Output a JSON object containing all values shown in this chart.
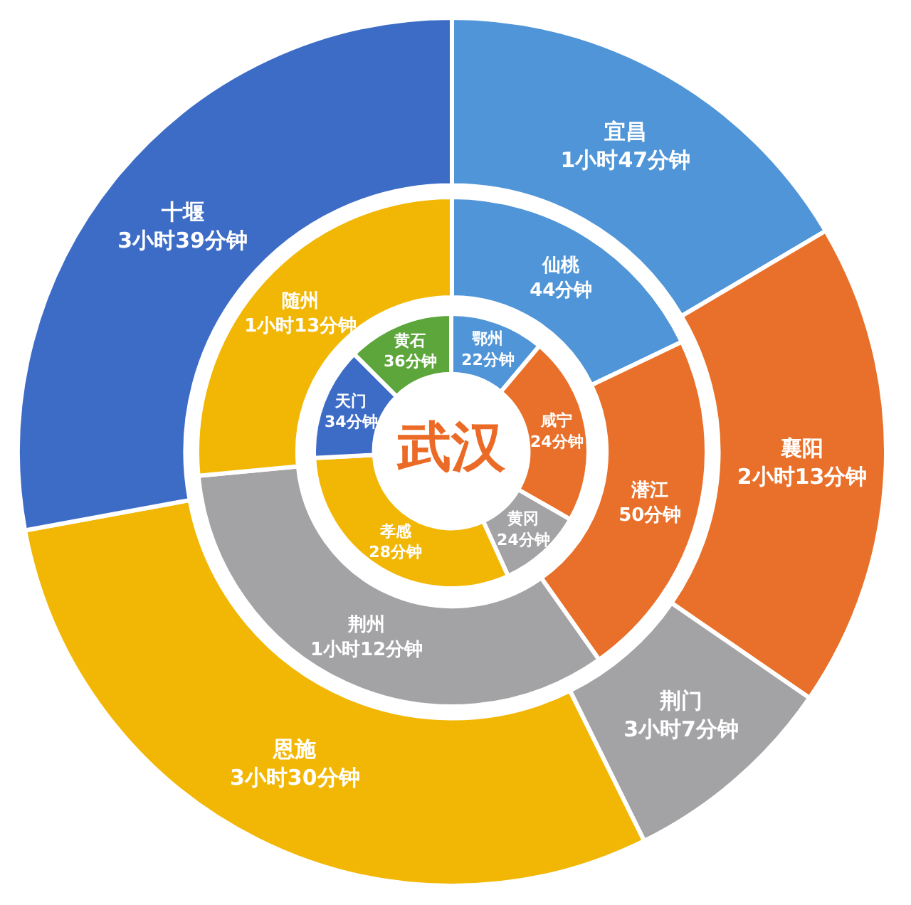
{
  "chart_data": [
    {
      "type": "donut",
      "categories": [
        "宜昌",
        "襄阳",
        "荆门",
        "恩施",
        "十堰"
      ],
      "values": [
        16.5,
        18.1,
        8.1,
        29.4,
        27.9
      ],
      "colors": [
        "#4f95d7",
        "#e8702a",
        "#a3a3a6",
        "#f2b705",
        "#3d6cc6"
      ],
      "annotations": [
        "1小时47分钟",
        "2小时13分钟",
        "3小时7分钟",
        "3小时30分钟",
        "3小时39分钟"
      ]
    },
    {
      "type": "donut",
      "categories": [
        "仙桃",
        "潜江",
        "荆州",
        "随州"
      ],
      "values": [
        17.9,
        22.3,
        33.3,
        26.5
      ],
      "colors": [
        "#4f95d7",
        "#e8702a",
        "#a3a3a6",
        "#f2b705"
      ],
      "annotations": [
        "44分钟",
        "50分钟",
        "1小时12分钟",
        "1小时13分钟"
      ]
    },
    {
      "type": "donut",
      "title": "武汉",
      "categories": [
        "鄂州",
        "咸宁",
        "黄冈",
        "孝感",
        "天门",
        "黄石"
      ],
      "values": [
        11.1,
        22.2,
        9.9,
        31.0,
        13.3,
        12.5
      ],
      "colors": [
        "#4f95d7",
        "#e8702a",
        "#a3a3a6",
        "#f2b705",
        "#3d6cc6",
        "#5da63b"
      ],
      "annotations": [
        "22分钟",
        "24分钟",
        "24分钟",
        "28分钟",
        "34分钟",
        "36分钟"
      ]
    }
  ]
}
